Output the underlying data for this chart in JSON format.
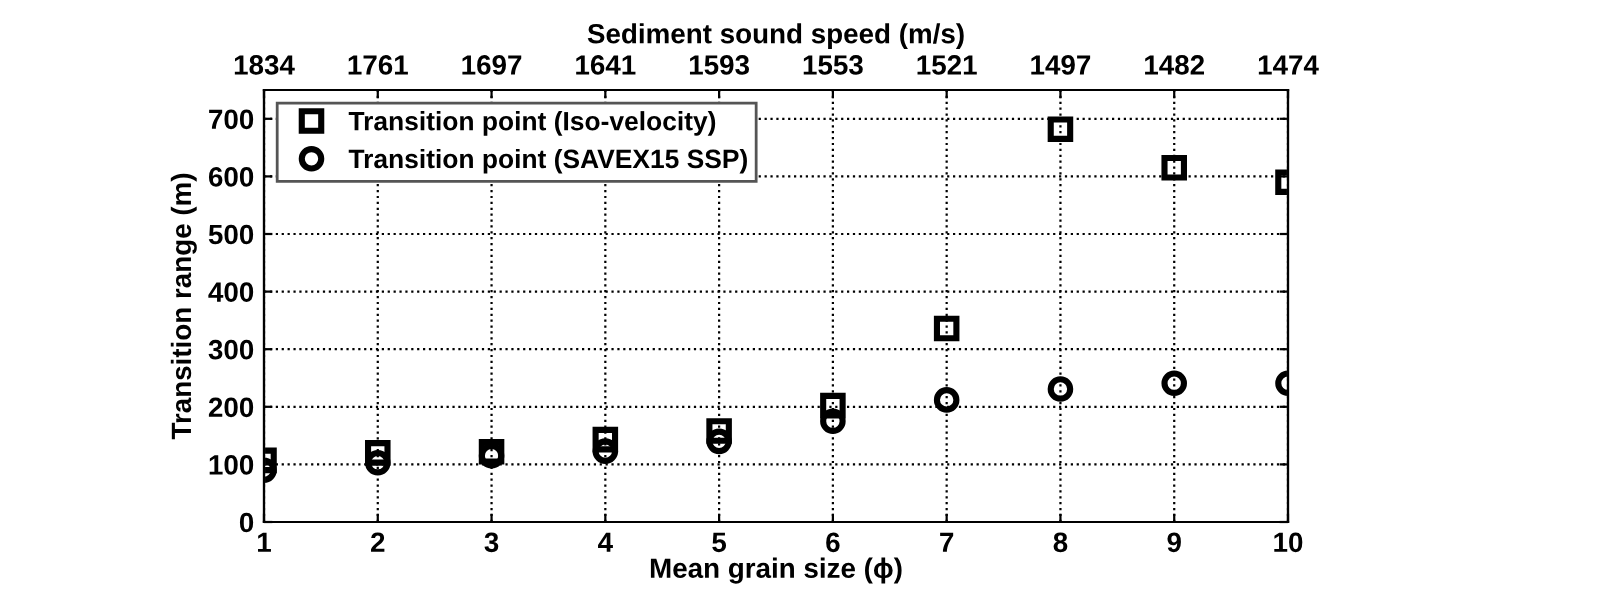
{
  "chart_data": {
    "type": "scatter",
    "xlabel": "Mean grain size (ϕ)",
    "ylabel": "Transition range (m)",
    "x2label": "Sediment sound speed (m/s)",
    "x": [
      1,
      2,
      3,
      4,
      5,
      6,
      7,
      8,
      9,
      10
    ],
    "series": [
      {
        "name": "Transition point (Iso-velocity)",
        "color": "#000000",
        "marker": "square",
        "values": [
          107,
          120,
          122,
          143,
          158,
          202,
          336,
          682,
          615,
          590
        ]
      },
      {
        "name": "Transition point (SAVEX15 SSP)",
        "color": "#000000",
        "marker": "circle",
        "values": [
          90,
          103,
          115,
          123,
          140,
          175,
          212,
          231,
          241,
          241
        ]
      }
    ],
    "xlim": [
      1,
      10
    ],
    "xticks": [
      1,
      2,
      3,
      4,
      5,
      6,
      7,
      8,
      9,
      10
    ],
    "annotations": [
      "1834",
      "1761",
      "1697",
      "1641",
      "1593",
      "1553",
      "1521",
      "1497",
      "1482",
      "1474"
    ],
    "ylim": [
      0,
      750
    ],
    "yticks": [
      0,
      100,
      200,
      300,
      400,
      500,
      600,
      700
    ],
    "grid": true,
    "legend": "top left"
  }
}
